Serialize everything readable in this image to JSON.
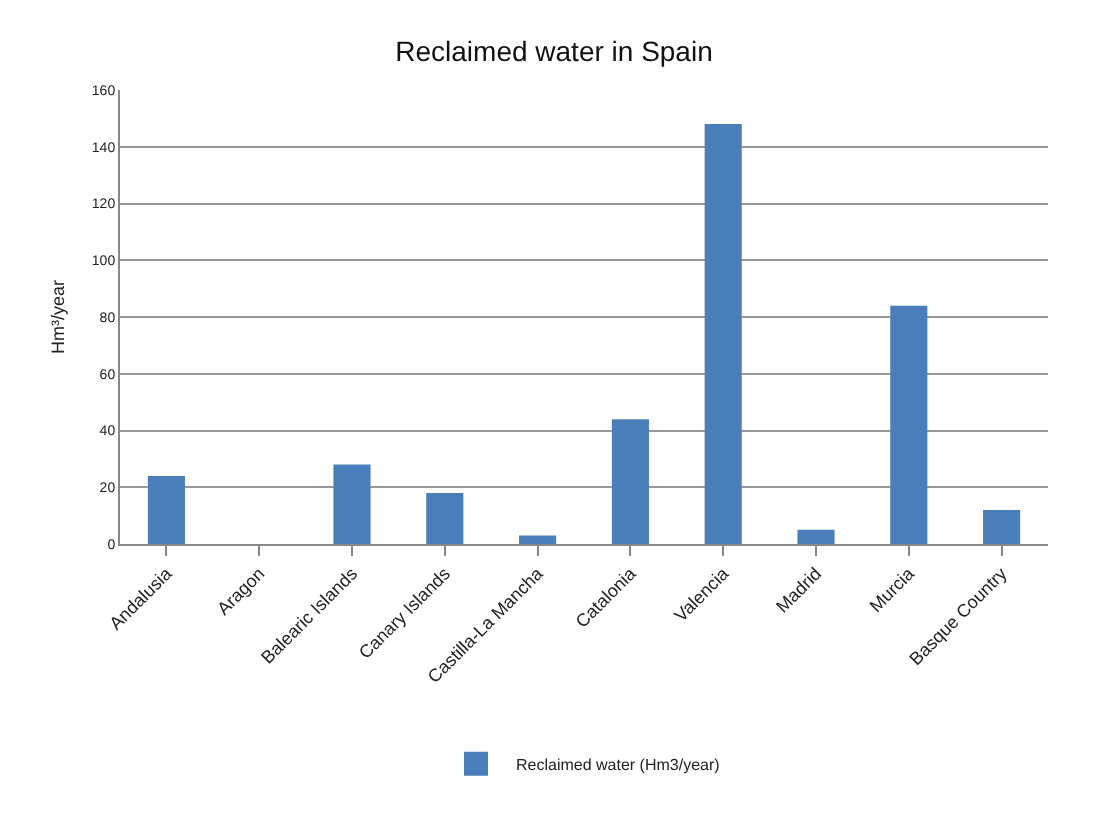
{
  "chart_data": {
    "type": "bar",
    "title": "Reclaimed water in Spain",
    "ylabel": "Hm³/year",
    "categories": [
      "Andalusia",
      "Aragon",
      "Balearic Islands",
      "Canary Islands",
      "Castilla-La Mancha",
      "Catalonia",
      "Valencia",
      "Madrid",
      "Murcia",
      "Basque Country"
    ],
    "series": [
      {
        "name": "Reclaimed water (Hm3/year)",
        "color": "#4a7ebb",
        "values": [
          24,
          0,
          28,
          18,
          3,
          44,
          148,
          5,
          84,
          12
        ]
      }
    ],
    "ylim": [
      0,
      160
    ],
    "yticks": [
      0,
      20,
      40,
      60,
      80,
      100,
      120,
      140,
      160
    ],
    "grid": "y",
    "legend": "bottom"
  }
}
